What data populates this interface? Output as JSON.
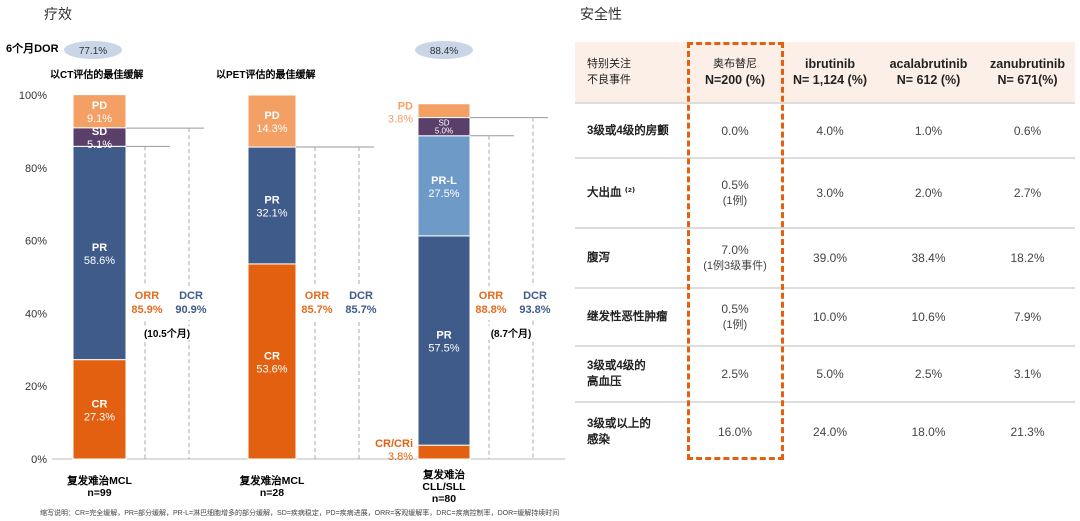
{
  "efficacy": {
    "title": "疗效",
    "dor_label": "6个月DOR",
    "dor_values": [
      "77.1%",
      "88.4%"
    ],
    "subtitles": [
      "以CT评估的最佳缓解",
      "以PET评估的最佳缓解"
    ],
    "footnote": "缩写说明：CR=完全缓解，PR=部分缓解，PR-L=淋巴细胞增多的部分缓解，SD=疾病稳定，PD=疾病进展，ORR=客观缓解率，DRC=疾病控制率，DOR=缓解持续时间"
  },
  "chart_data": {
    "type": "stacked-bar",
    "ylim": [
      0,
      100
    ],
    "yticks": [
      "0%",
      "20%",
      "40%",
      "60%",
      "80%",
      "100%"
    ],
    "grid": false,
    "colors": {
      "CR": "#e2600f",
      "CR/CRi": "#e2600f",
      "PR": "#3f5b8a",
      "PR-L": "#6d9ac7",
      "SD": "#5b3f6b",
      "PD": "#f4a064",
      "ORR": "#e46c1f",
      "DCR": "#3f5b8a"
    },
    "bars": [
      {
        "category": [
          "复发难治MCL",
          "n=99"
        ],
        "segments": [
          {
            "name": "CR",
            "value": 27.3
          },
          {
            "name": "PR",
            "value": 58.6
          },
          {
            "name": "SD",
            "value": 5.1
          },
          {
            "name": "PD",
            "value": 9.1
          }
        ],
        "orr": 85.9,
        "dcr": 90.9,
        "annotation": "(10.5个月)"
      },
      {
        "category": [
          "复发难治MCL",
          "n=28"
        ],
        "segments": [
          {
            "name": "CR",
            "value": 53.6
          },
          {
            "name": "PR",
            "value": 32.1
          },
          {
            "name": "PD",
            "value": 14.3
          }
        ],
        "orr": 85.7,
        "dcr": 85.7,
        "annotation": ""
      },
      {
        "category": [
          "复发难治",
          "CLL/SLL",
          "n=80"
        ],
        "segments": [
          {
            "name": "CR/CRi",
            "value": 3.8
          },
          {
            "name": "PR",
            "value": 57.5
          },
          {
            "name": "PR-L",
            "value": 27.5
          },
          {
            "name": "SD",
            "value": 5.0
          },
          {
            "name": "PD",
            "value": 3.8
          }
        ],
        "orr": 88.8,
        "dcr": 93.8,
        "annotation": "(8.7个月)"
      }
    ]
  },
  "safety": {
    "title": "安全性",
    "headers": [
      [
        "特别关注",
        "不良事件"
      ],
      [
        "奥布替尼",
        "N=200 (%)"
      ],
      [
        "ibrutinib",
        "N= 1,124 (%)"
      ],
      [
        "acalabrutinib",
        "N= 612 (%)"
      ],
      [
        "zanubrutinib",
        "N= 671(%)"
      ]
    ],
    "rows": [
      {
        "label": [
          "3级或4级的房颤"
        ],
        "values": [
          [
            "0.0%"
          ],
          [
            "4.0%"
          ],
          [
            "1.0%"
          ],
          [
            "0.6%"
          ]
        ]
      },
      {
        "label": [
          "大出血 ⁽²⁾"
        ],
        "values": [
          [
            "0.5%",
            "(1例)"
          ],
          [
            "3.0%"
          ],
          [
            "2.0%"
          ],
          [
            "2.7%"
          ]
        ]
      },
      {
        "label": [
          "腹泻"
        ],
        "values": [
          [
            "7.0%",
            "(1例3级事件)"
          ],
          [
            "39.0%"
          ],
          [
            "38.4%"
          ],
          [
            "18.2%"
          ]
        ]
      },
      {
        "label": [
          "继发性恶性肿瘤"
        ],
        "values": [
          [
            "0.5%",
            "(1例)"
          ],
          [
            "10.0%"
          ],
          [
            "10.6%"
          ],
          [
            "7.9%"
          ]
        ]
      },
      {
        "label": [
          "3级或4级的",
          "高血压"
        ],
        "values": [
          [
            "2.5%"
          ],
          [
            "5.0%"
          ],
          [
            "2.5%"
          ],
          [
            "3.1%"
          ]
        ]
      },
      {
        "label": [
          "3级或以上的",
          "感染"
        ],
        "values": [
          [
            "16.0%"
          ],
          [
            "24.0%"
          ],
          [
            "18.0%"
          ],
          [
            "21.3%"
          ]
        ]
      }
    ]
  }
}
